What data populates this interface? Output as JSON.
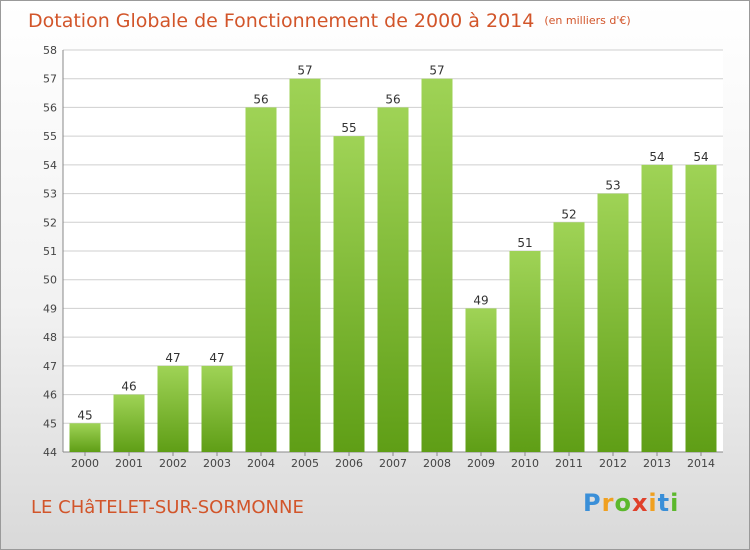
{
  "header": {
    "title": "Dotation Globale de Fonctionnement de 2000 à 2014",
    "unit": "(en milliers d'€)"
  },
  "footer": {
    "town": "LE CHâTELET-SUR-SORMONNE",
    "logo_letters": [
      "P",
      "r",
      "o",
      "x",
      "i",
      "t",
      "i"
    ]
  },
  "colors": {
    "title": "#d2552a",
    "bar_top": "#9fd356",
    "bar_bottom": "#5f9e16",
    "grid": "#cfcfcf"
  },
  "chart_data": {
    "type": "bar",
    "title": "Dotation Globale de Fonctionnement de 2000 à 2014",
    "subtitle": "(en milliers d'€)",
    "xlabel": "",
    "ylabel": "",
    "categories": [
      "2000",
      "2001",
      "2002",
      "2003",
      "2004",
      "2005",
      "2006",
      "2007",
      "2008",
      "2009",
      "2010",
      "2011",
      "2012",
      "2013",
      "2014"
    ],
    "values": [
      45,
      46,
      47,
      47,
      56,
      57,
      55,
      56,
      57,
      49,
      51,
      52,
      53,
      54,
      54
    ],
    "ylim": [
      44,
      58
    ],
    "yticks": [
      44,
      45,
      46,
      47,
      48,
      49,
      50,
      51,
      52,
      53,
      54,
      55,
      56,
      57,
      58
    ],
    "grid": true,
    "data_labels": true
  }
}
